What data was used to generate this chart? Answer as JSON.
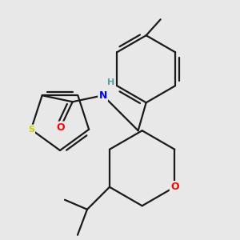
{
  "background_color": "#e8e8e8",
  "bond_color": "#1a1a1a",
  "S_color": "#cccc00",
  "O_color": "#ff0000",
  "N_color": "#0000ff",
  "H_color": "#5f9ea0",
  "figsize": [
    3.0,
    3.0
  ],
  "dpi": 100,
  "xlim": [
    0,
    300
  ],
  "ylim": [
    0,
    300
  ]
}
